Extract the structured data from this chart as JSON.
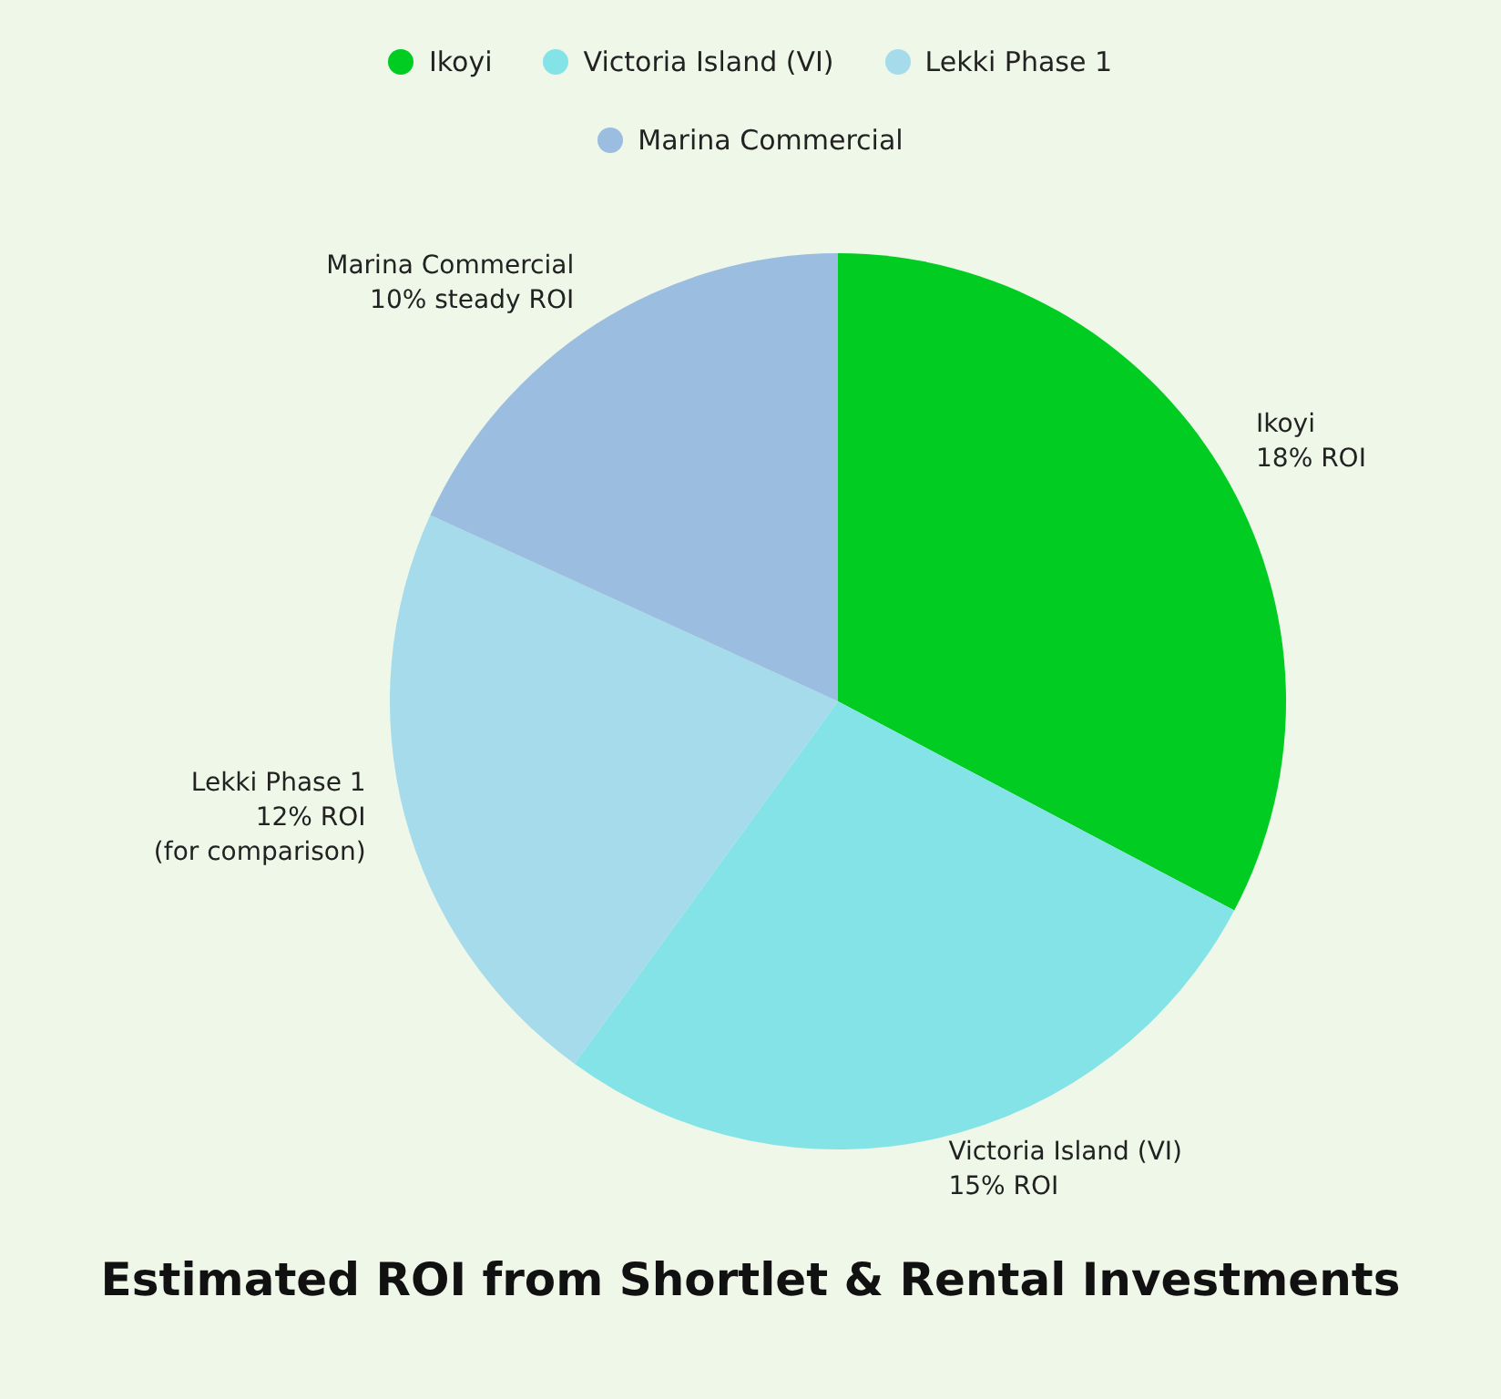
{
  "chart_data": {
    "type": "pie",
    "title": "Estimated ROI from Shortlet & Rental Investments",
    "categories": [
      "Ikoyi",
      "Victoria Island (VI)",
      "Lekki Phase 1",
      "Marina Commercial"
    ],
    "values": [
      18,
      15,
      12,
      10
    ],
    "colors": [
      "#00cc22",
      "#84e3e6",
      "#a5dbea",
      "#9bbde0"
    ],
    "value_labels": [
      "18% ROI",
      "15% ROI",
      "12% ROI\n(for comparison)",
      "10% steady ROI"
    ],
    "legend": "top"
  }
}
